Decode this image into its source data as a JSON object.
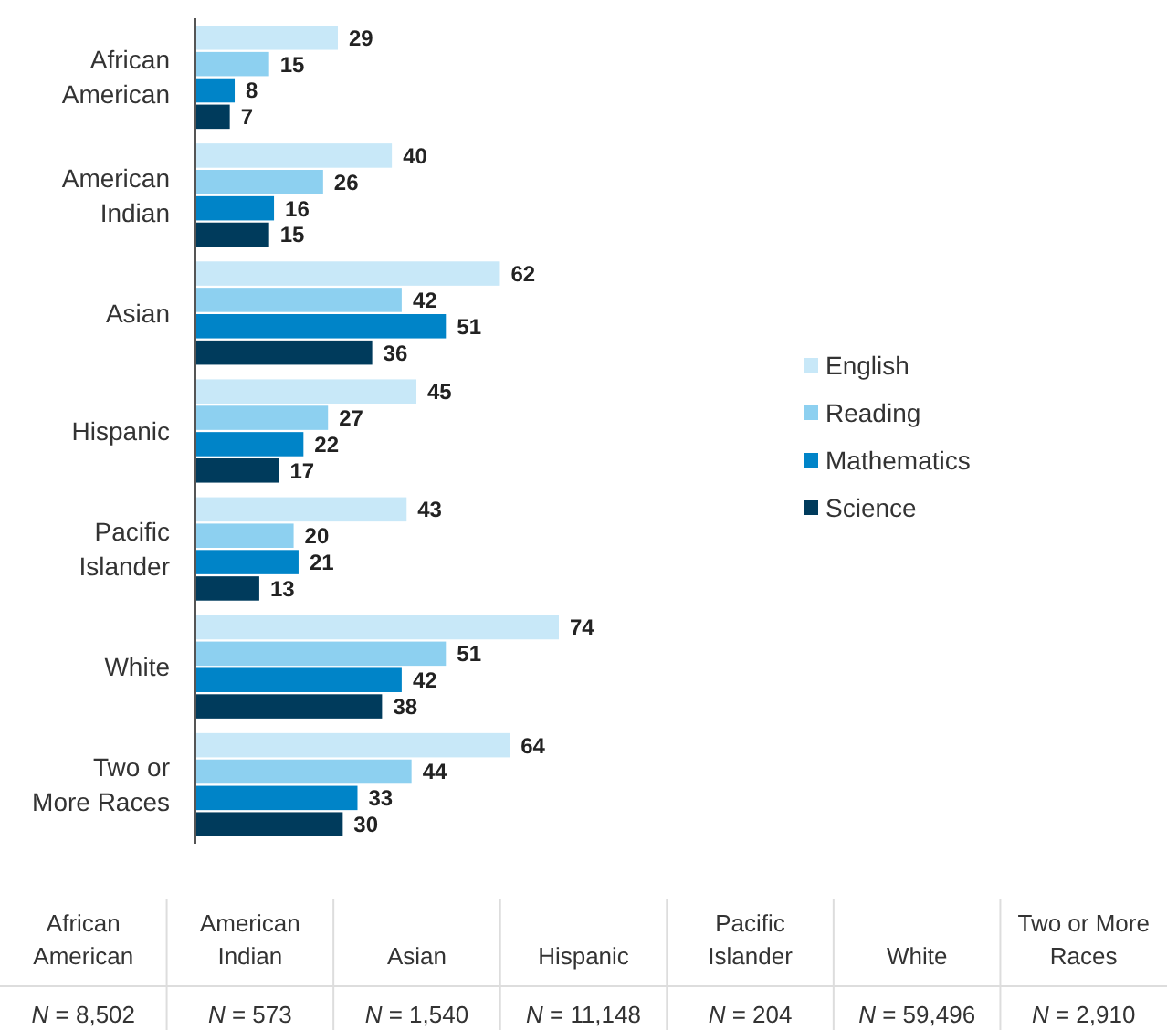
{
  "chart_data": {
    "type": "bar",
    "orientation": "horizontal",
    "data_labels": true,
    "legend": "right",
    "categories": [
      "African American",
      "American Indian",
      "Asian",
      "Hispanic",
      "Pacific Islander",
      "White",
      "Two or More Races"
    ],
    "series": [
      {
        "name": "English",
        "color": "#c8e8f8",
        "values": [
          29,
          40,
          62,
          45,
          43,
          74,
          64
        ]
      },
      {
        "name": "Reading",
        "color": "#8dd0f0",
        "values": [
          15,
          26,
          42,
          27,
          20,
          51,
          44
        ]
      },
      {
        "name": "Mathematics",
        "color": "#0084c8",
        "values": [
          8,
          16,
          51,
          22,
          21,
          42,
          33
        ]
      },
      {
        "name": "Science",
        "color": "#003b5c",
        "values": [
          7,
          15,
          36,
          17,
          13,
          38,
          30
        ]
      }
    ],
    "annotations": [
      "N = 8,502",
      "N = 573",
      "N = 1,540",
      "N = 11,148",
      "N = 204",
      "N = 59,496",
      "N = 2,910"
    ]
  }
}
